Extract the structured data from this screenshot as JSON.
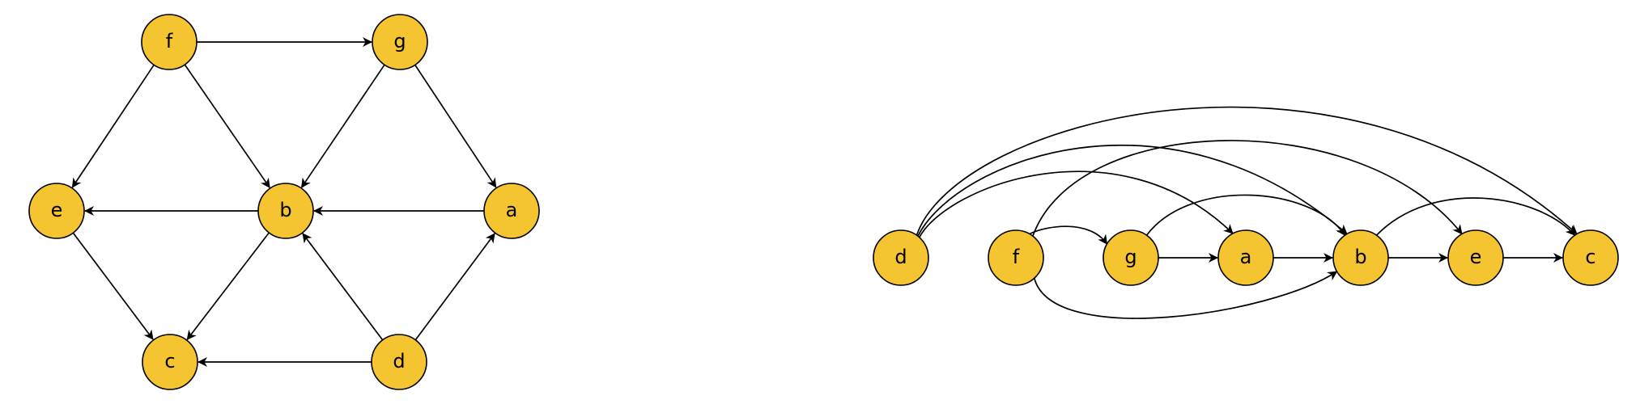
{
  "colors": {
    "node_fill": "#F5C431",
    "node_stroke": "#000000",
    "edge": "#000000",
    "background": "#FFFFFF"
  },
  "graph": {
    "nodes": [
      "a",
      "b",
      "c",
      "d",
      "e",
      "f",
      "g"
    ],
    "edges": [
      [
        "f",
        "g"
      ],
      [
        "f",
        "e"
      ],
      [
        "f",
        "b"
      ],
      [
        "g",
        "b"
      ],
      [
        "g",
        "a"
      ],
      [
        "a",
        "b"
      ],
      [
        "b",
        "e"
      ],
      [
        "b",
        "c"
      ],
      [
        "e",
        "c"
      ],
      [
        "d",
        "c"
      ],
      [
        "d",
        "b"
      ],
      [
        "d",
        "a"
      ]
    ]
  },
  "left_diagram": {
    "layout": "hexagonal"
  },
  "right_diagram": {
    "layout": "linear topological order",
    "order": [
      "d",
      "f",
      "g",
      "a",
      "b",
      "e",
      "c"
    ]
  }
}
